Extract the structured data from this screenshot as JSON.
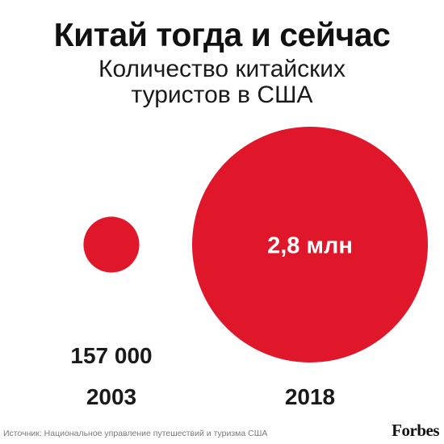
{
  "chart_data": {
    "type": "bubble",
    "title": "Китай тогда и сейчас",
    "subtitle": "Количество китайских\nтуристов в США",
    "categories": [
      "2003",
      "2018"
    ],
    "values": [
      157000,
      2800000
    ],
    "value_labels": [
      "157 000",
      "2,8 млн"
    ],
    "colors": {
      "bubble": "#e0162b",
      "label_on_bubble": "#ffffff",
      "label_dark": "#1a1a1a"
    },
    "legend": "none",
    "grid": false
  },
  "footer": {
    "source": "Источник: Национальное управление путешествий и туризма США",
    "brand": "Forbes"
  }
}
